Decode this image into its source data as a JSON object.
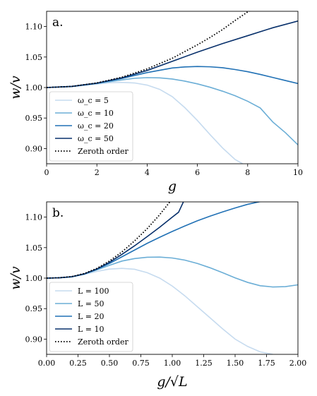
{
  "chart_data": [
    {
      "type": "line",
      "panel_label": "a.",
      "xlabel": "g",
      "ylabel": "w/v",
      "xlim": [
        0,
        10
      ],
      "ylim": [
        0.875,
        1.125
      ],
      "xticks": [
        "0",
        "2",
        "4",
        "6",
        "8",
        "10"
      ],
      "yticks": [
        "0.90",
        "0.95",
        "1.00",
        "1.05",
        "1.10"
      ],
      "legend_placement": "lower-left",
      "series": [
        {
          "name": "ω_c = 5",
          "color": "#c6dbef",
          "style": "solid",
          "x": [
            0,
            1,
            2,
            2.5,
            3,
            3.5,
            4,
            4.5,
            5,
            5.5,
            6,
            6.5,
            7,
            7.5,
            7.8
          ],
          "y": [
            1.0,
            1.0015,
            1.0055,
            1.0078,
            1.0085,
            1.0075,
            1.004,
            0.997,
            0.985,
            0.967,
            0.946,
            0.923,
            0.901,
            0.882,
            0.875
          ]
        },
        {
          "name": "ω_c = 10",
          "color": "#6baed6",
          "style": "solid",
          "x": [
            0,
            1,
            2,
            3,
            3.5,
            4,
            4.5,
            5,
            5.5,
            6,
            6.5,
            7,
            7.5,
            8,
            8.5,
            9,
            9.5,
            10
          ],
          "y": [
            1.0,
            1.0017,
            1.0065,
            1.0125,
            1.0152,
            1.0162,
            1.0158,
            1.014,
            1.0105,
            1.006,
            1.0005,
            0.994,
            0.9865,
            0.9775,
            0.9665,
            0.9435,
            0.926,
            0.906
          ]
        },
        {
          "name": "ω_c = 20",
          "color": "#2171b5",
          "style": "solid",
          "x": [
            0,
            1,
            2,
            3,
            4,
            5,
            5.5,
            6,
            6.5,
            7,
            7.5,
            8,
            8.5,
            9,
            9.5,
            10
          ],
          "y": [
            1.0,
            1.0018,
            1.007,
            1.015,
            1.0245,
            1.032,
            1.0338,
            1.0345,
            1.034,
            1.0325,
            1.0295,
            1.026,
            1.0215,
            1.0165,
            1.0115,
            1.0065
          ]
        },
        {
          "name": "ω_c = 50",
          "color": "#08306b",
          "style": "solid",
          "x": [
            0,
            1,
            2,
            3,
            4,
            5,
            6,
            7,
            8,
            9,
            10
          ],
          "y": [
            1.0,
            1.0018,
            1.0072,
            1.016,
            1.028,
            1.043,
            1.058,
            1.072,
            1.085,
            1.098,
            1.109
          ]
        },
        {
          "name": "Zeroth order",
          "color": "#000000",
          "style": "dotted",
          "x": [
            0,
            1,
            2,
            3,
            4,
            5,
            6,
            6.5,
            7,
            7.5,
            8,
            8.3
          ],
          "y": [
            1.0,
            1.0018,
            1.0075,
            1.017,
            1.0305,
            1.048,
            1.07,
            1.082,
            1.095,
            1.11,
            1.124,
            1.13
          ]
        }
      ]
    },
    {
      "type": "line",
      "panel_label": "b.",
      "xlabel": "g/√L",
      "ylabel": "w/v",
      "xlim": [
        0,
        2
      ],
      "ylim": [
        0.875,
        1.125
      ],
      "xticks": [
        "0.00",
        "0.25",
        "0.50",
        "0.75",
        "1.00",
        "1.25",
        "1.50",
        "1.75",
        "2.00"
      ],
      "yticks": [
        "0.90",
        "0.95",
        "1.00",
        "1.05",
        "1.10"
      ],
      "legend_placement": "lower-left",
      "series": [
        {
          "name": "L = 100",
          "color": "#c6dbef",
          "style": "solid",
          "x": [
            0,
            0.1,
            0.2,
            0.3,
            0.4,
            0.5,
            0.6,
            0.7,
            0.8,
            0.9,
            1.0,
            1.1,
            1.2,
            1.3,
            1.4,
            1.5,
            1.6,
            1.7,
            1.8
          ],
          "y": [
            1.0,
            1.0005,
            1.002,
            1.006,
            1.011,
            1.0148,
            1.016,
            1.0145,
            1.009,
            1.0,
            0.987,
            0.971,
            0.953,
            0.935,
            0.917,
            0.9,
            0.888,
            0.879,
            0.875
          ]
        },
        {
          "name": "L = 50",
          "color": "#6baed6",
          "style": "solid",
          "x": [
            0,
            0.1,
            0.2,
            0.3,
            0.4,
            0.5,
            0.6,
            0.7,
            0.8,
            0.9,
            1.0,
            1.1,
            1.2,
            1.3,
            1.4,
            1.5,
            1.6,
            1.7,
            1.8,
            1.9,
            2.0
          ],
          "y": [
            1.0,
            1.0005,
            1.002,
            1.0065,
            1.0135,
            1.021,
            1.028,
            1.032,
            1.0342,
            1.0345,
            1.033,
            1.0295,
            1.024,
            1.017,
            1.009,
            1.0005,
            0.993,
            0.9875,
            0.9855,
            0.986,
            0.989
          ]
        },
        {
          "name": "L = 20",
          "color": "#2171b5",
          "style": "solid",
          "x": [
            0,
            0.1,
            0.2,
            0.3,
            0.4,
            0.5,
            0.6,
            0.7,
            0.8,
            0.9,
            1.0,
            1.1,
            1.2,
            1.3,
            1.4,
            1.5,
            1.6,
            1.7,
            1.75
          ],
          "y": [
            1.0,
            1.0005,
            1.0022,
            1.0068,
            1.0145,
            1.024,
            1.035,
            1.046,
            1.057,
            1.067,
            1.0765,
            1.0855,
            1.094,
            1.1015,
            1.1085,
            1.115,
            1.121,
            1.1255,
            1.128
          ]
        },
        {
          "name": "L = 10",
          "color": "#08306b",
          "style": "solid",
          "x": [
            0,
            0.1,
            0.2,
            0.3,
            0.4,
            0.5,
            0.6,
            0.7,
            0.8,
            0.9,
            1.0,
            1.05,
            1.1
          ],
          "y": [
            1.0,
            1.0005,
            1.0023,
            1.007,
            1.015,
            1.026,
            1.039,
            1.053,
            1.068,
            1.0835,
            1.1,
            1.108,
            1.13
          ]
        },
        {
          "name": "Zeroth order",
          "color": "#000000",
          "style": "dotted",
          "x": [
            0,
            0.1,
            0.2,
            0.3,
            0.4,
            0.5,
            0.6,
            0.7,
            0.8,
            0.9,
            0.95,
            1.0
          ],
          "y": [
            1.0,
            1.0006,
            1.0025,
            1.0075,
            1.016,
            1.028,
            1.043,
            1.061,
            1.081,
            1.104,
            1.117,
            1.13
          ]
        }
      ]
    }
  ]
}
